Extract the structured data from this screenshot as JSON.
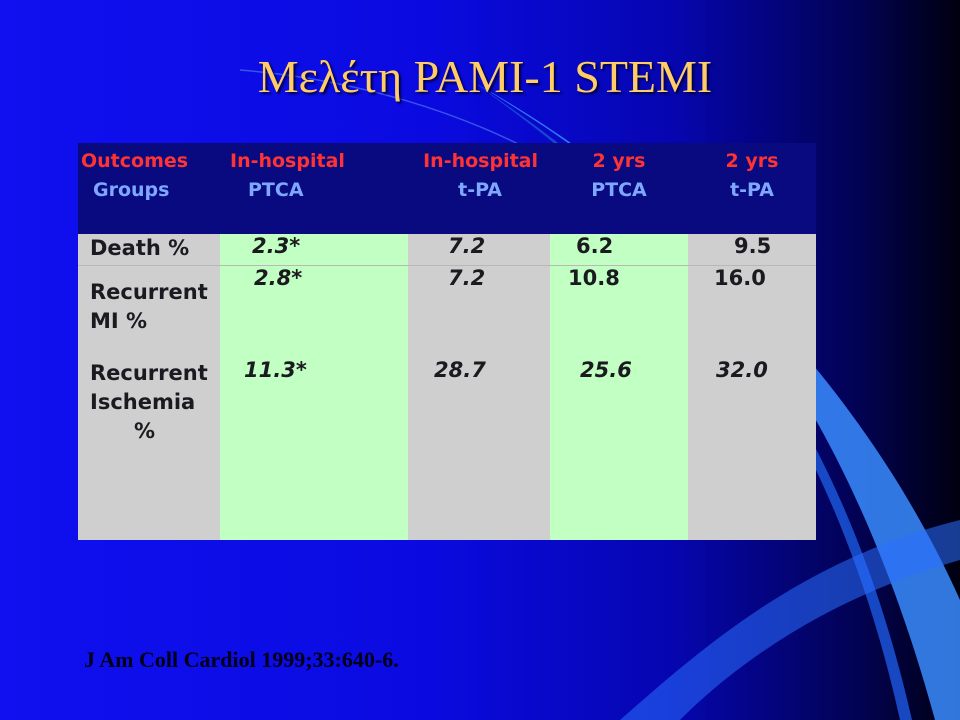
{
  "title": "Μελέτη PAMI-1 STEMI",
  "header": {
    "col0_line1": "Outcomes",
    "col0_line2": "Groups",
    "col1_line1": "In-hospital",
    "col1_line2": "PTCA",
    "col2_line1": "In-hospital",
    "col2_line2": "t-PA",
    "col3_line1": "2 yrs",
    "col3_line2": "PTCA",
    "col4_line1": "2 yrs",
    "col4_line2": "t-PA"
  },
  "rows": [
    {
      "label_line1": "Death %",
      "values": [
        "2.3*",
        "7.2",
        "6.2",
        "9.5"
      ]
    },
    {
      "label_line1": "Recurrent",
      "label_line2": "MI  %",
      "values": [
        "2.8*",
        "7.2",
        "10.8",
        "16.0"
      ]
    },
    {
      "label_line1": "Recurrent",
      "label_line2": "Ischemia",
      "label_line3": "%",
      "values": [
        "11.3*",
        "28.7",
        "25.6",
        "32.0"
      ]
    }
  ],
  "citation": "J Am Coll Cardiol 1999;33:640-6.",
  "colors": {
    "title": "#ffcc66",
    "header_red": "#ff3333",
    "header_blue": "#7ea8ff",
    "header_bg": "#0a0a80",
    "green_cell": "#c2ffc2",
    "gray_cell": "#cfcfcf"
  }
}
